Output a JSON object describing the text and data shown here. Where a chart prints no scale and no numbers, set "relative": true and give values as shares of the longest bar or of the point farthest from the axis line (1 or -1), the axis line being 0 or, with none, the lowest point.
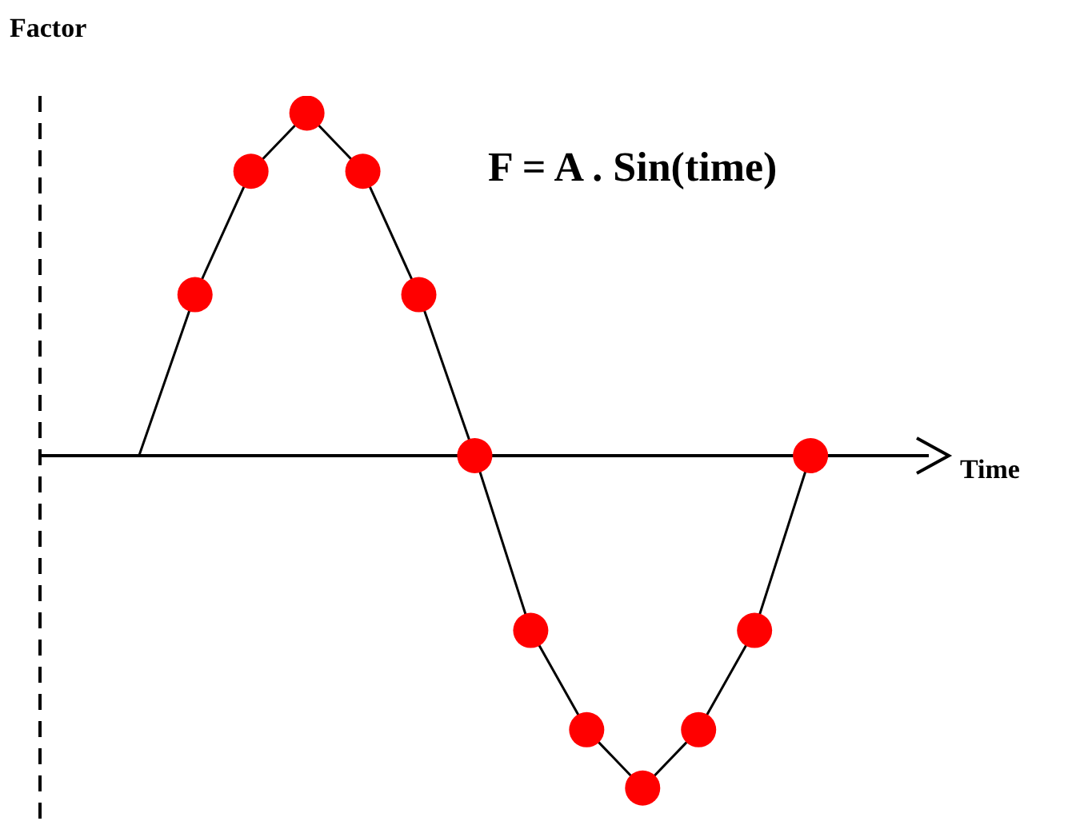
{
  "chart_data": {
    "type": "line",
    "xlabel": "Time",
    "ylabel": "Factor",
    "annotations": [
      "F = A . Sin(time)"
    ],
    "relative": true,
    "legend": false,
    "marker": "circle",
    "categories": [
      null,
      null,
      null,
      null,
      null,
      null,
      null,
      null,
      null,
      null,
      null,
      null,
      null
    ],
    "series": [
      {
        "color": "#000000",
        "colors": [
          null,
          "#ff0000",
          "#ff0000",
          "#ff0000",
          "#ff0000",
          "#ff0000",
          "#ff0000",
          "#ff0000",
          "#ff0000",
          "#ff0000",
          "#ff0000",
          "#ff0000",
          "#ff0000"
        ],
        "values": [
          0,
          0.47,
          0.83,
          1,
          0.83,
          0.47,
          0,
          -0.51,
          -0.8,
          -0.97,
          -0.8,
          -0.51,
          0
        ]
      }
    ]
  }
}
